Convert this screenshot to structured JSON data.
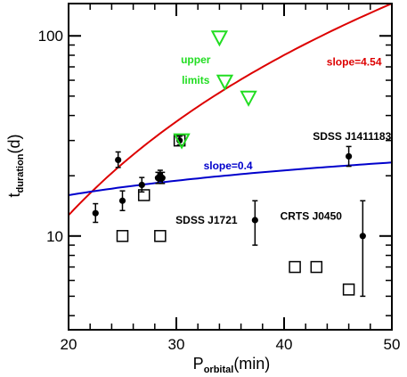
{
  "chart_data": {
    "type": "scatter",
    "xlabel": "P",
    "xlabel_sub": "orbital",
    "xlabel_unit": "(min)",
    "ylabel": "t",
    "ylabel_sub": "duration",
    "ylabel_unit": "(d)",
    "xlim": [
      20,
      50
    ],
    "ylim": [
      3.4,
      145
    ],
    "yscale": "log",
    "x_ticks": [
      20,
      30,
      40,
      50
    ],
    "x_tick_labels": [
      "20",
      "30",
      "40",
      "50"
    ],
    "y_ticks": [
      10,
      100
    ],
    "y_tick_labels": [
      "10",
      "100"
    ],
    "grid": false,
    "series": [
      {
        "marker": "filled-circle-errorbar",
        "color": "#000000",
        "points": [
          {
            "x": 22.5,
            "y": 13,
            "ylo": 11.7,
            "yhi": 14.5
          },
          {
            "x": 24.6,
            "y": 24,
            "ylo": 22.0,
            "yhi": 26.3
          },
          {
            "x": 25.0,
            "y": 15,
            "ylo": 13.4,
            "yhi": 16.8
          },
          {
            "x": 26.8,
            "y": 18,
            "ylo": 16.6,
            "yhi": 19.6
          },
          {
            "x": 28.3,
            "y": 19.5,
            "ylo": 18.3,
            "yhi": 20.8
          },
          {
            "x": 28.5,
            "y": 20,
            "ylo": 18.8,
            "yhi": 21.3
          },
          {
            "x": 28.7,
            "y": 19.5,
            "ylo": 18.3,
            "yhi": 20.8
          },
          {
            "x": 30.3,
            "y": 30,
            "ylo": 28.5,
            "yhi": 31.5
          },
          {
            "x": 37.3,
            "y": 12,
            "ylo": 9.0,
            "yhi": 15.0
          },
          {
            "x": 46.0,
            "y": 25,
            "ylo": 22.3,
            "yhi": 28.0
          },
          {
            "x": 47.3,
            "y": 10,
            "ylo": 5.0,
            "yhi": 15.0
          }
        ]
      },
      {
        "marker": "open-square",
        "color": "#000000",
        "points": [
          {
            "x": 25.0,
            "y": 10
          },
          {
            "x": 27.0,
            "y": 16
          },
          {
            "x": 28.5,
            "y": 10
          },
          {
            "x": 30.3,
            "y": 30
          },
          {
            "x": 41.0,
            "y": 7
          },
          {
            "x": 43.0,
            "y": 7
          },
          {
            "x": 46.0,
            "y": 5.4
          }
        ]
      },
      {
        "marker": "open-triangle-down",
        "color": "#22dd22",
        "points": [
          {
            "x": 30.5,
            "y": 30
          },
          {
            "x": 34.0,
            "y": 98
          },
          {
            "x": 34.5,
            "y": 59
          },
          {
            "x": 36.7,
            "y": 49
          }
        ]
      }
    ],
    "lines": [
      {
        "color": "#dd0000",
        "slope": 4.54,
        "x": [
          20,
          50
        ],
        "y": [
          12.7,
          145
        ]
      },
      {
        "color": "#0000cc",
        "slope": 0.4,
        "x": [
          20,
          50
        ],
        "y": [
          16.0,
          23.3
        ]
      }
    ],
    "annotations": [
      {
        "text": "upper",
        "x": 31.8,
        "y": 76,
        "color": "#22dd22"
      },
      {
        "text": "limits",
        "x": 31.8,
        "y": 60,
        "color": "#22dd22"
      },
      {
        "text": "slope=4.54",
        "x": 46.5,
        "y": 74,
        "color": "#dd0000"
      },
      {
        "text": "slope=0.4",
        "x": 34.8,
        "y": 22.4,
        "color": "#0000cc"
      },
      {
        "text": "SDSS J1411183",
        "x": 46.3,
        "y": 31.5,
        "color": "#000000"
      },
      {
        "text": "SDSS J1721",
        "x": 32.8,
        "y": 12.0,
        "color": "#000000"
      },
      {
        "text": "CRTS J0450",
        "x": 42.5,
        "y": 12.6,
        "color": "#000000"
      }
    ]
  }
}
